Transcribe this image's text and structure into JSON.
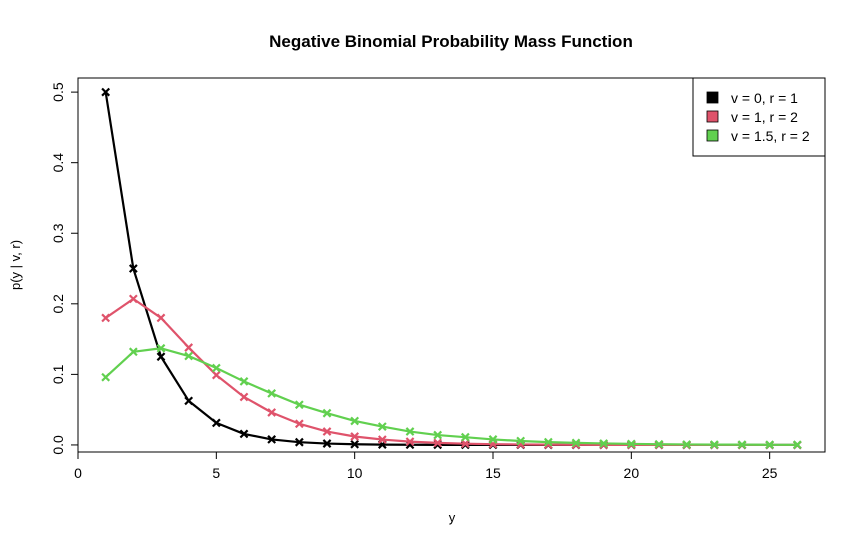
{
  "chart_data": {
    "type": "line",
    "title": "Negative Binomial Probability Mass Function",
    "xlabel": "y",
    "ylabel": "p(y | v, r)",
    "xlim": [
      0,
      27
    ],
    "ylim": [
      -0.01,
      0.52
    ],
    "x_ticks": [
      0,
      5,
      10,
      15,
      20,
      25
    ],
    "y_ticks": [
      0.0,
      0.1,
      0.2,
      0.3,
      0.4,
      0.5
    ],
    "x_tick_labels": [
      "0",
      "5",
      "10",
      "15",
      "20",
      "25"
    ],
    "y_tick_labels": [
      "0.0",
      "0.1",
      "0.2",
      "0.3",
      "0.4",
      "0.5"
    ],
    "grid": false,
    "legend_position": "top-right",
    "marker": "x",
    "series": [
      {
        "name": "v = 0, r = 1",
        "color": "#000000",
        "x": [
          1,
          2,
          3,
          4,
          5,
          6,
          7,
          8,
          9,
          10,
          11,
          12,
          13,
          14,
          15,
          16,
          17,
          18,
          19,
          20,
          21,
          22,
          23,
          24,
          25,
          26
        ],
        "y": [
          0.5,
          0.25,
          0.125,
          0.0625,
          0.03125,
          0.015625,
          0.0078125,
          0.0039063,
          0.0019531,
          0.0009766,
          0.0004883,
          0.0002441,
          0.0001221,
          6.1e-05,
          3.05e-05,
          1.53e-05,
          7.6e-06,
          3.8e-06,
          1.9e-06,
          1e-06,
          5e-07,
          2e-07,
          1e-07,
          1e-07,
          0.0,
          0.0
        ]
      },
      {
        "name": "v = 1, r = 2",
        "color": "#DF536B",
        "x": [
          1,
          2,
          3,
          4,
          5,
          6,
          7,
          8,
          9,
          10,
          11,
          12,
          13,
          14,
          15,
          16,
          17,
          18,
          19,
          20,
          21,
          22,
          23,
          24,
          25,
          26
        ],
        "y": [
          0.18,
          0.207,
          0.18,
          0.138,
          0.099,
          0.068,
          0.046,
          0.03,
          0.019,
          0.012,
          0.0076,
          0.0047,
          0.0029,
          0.0018,
          0.0011,
          0.0007,
          0.0004,
          0.0002,
          0.0001,
          0.0001,
          0.0,
          0.0,
          0.0,
          0.0,
          0.0,
          0.0
        ]
      },
      {
        "name": "v = 1.5, r = 2",
        "color": "#61D04F",
        "x": [
          1,
          2,
          3,
          4,
          5,
          6,
          7,
          8,
          9,
          10,
          11,
          12,
          13,
          14,
          15,
          16,
          17,
          18,
          19,
          20,
          21,
          22,
          23,
          24,
          25,
          26
        ],
        "y": [
          0.096,
          0.132,
          0.137,
          0.126,
          0.109,
          0.09,
          0.073,
          0.057,
          0.045,
          0.034,
          0.026,
          0.019,
          0.014,
          0.011,
          0.0078,
          0.0056,
          0.004,
          0.0029,
          0.0021,
          0.0015,
          0.001,
          0.0007,
          0.0005,
          0.0004,
          0.0002,
          0.0002
        ]
      }
    ]
  }
}
